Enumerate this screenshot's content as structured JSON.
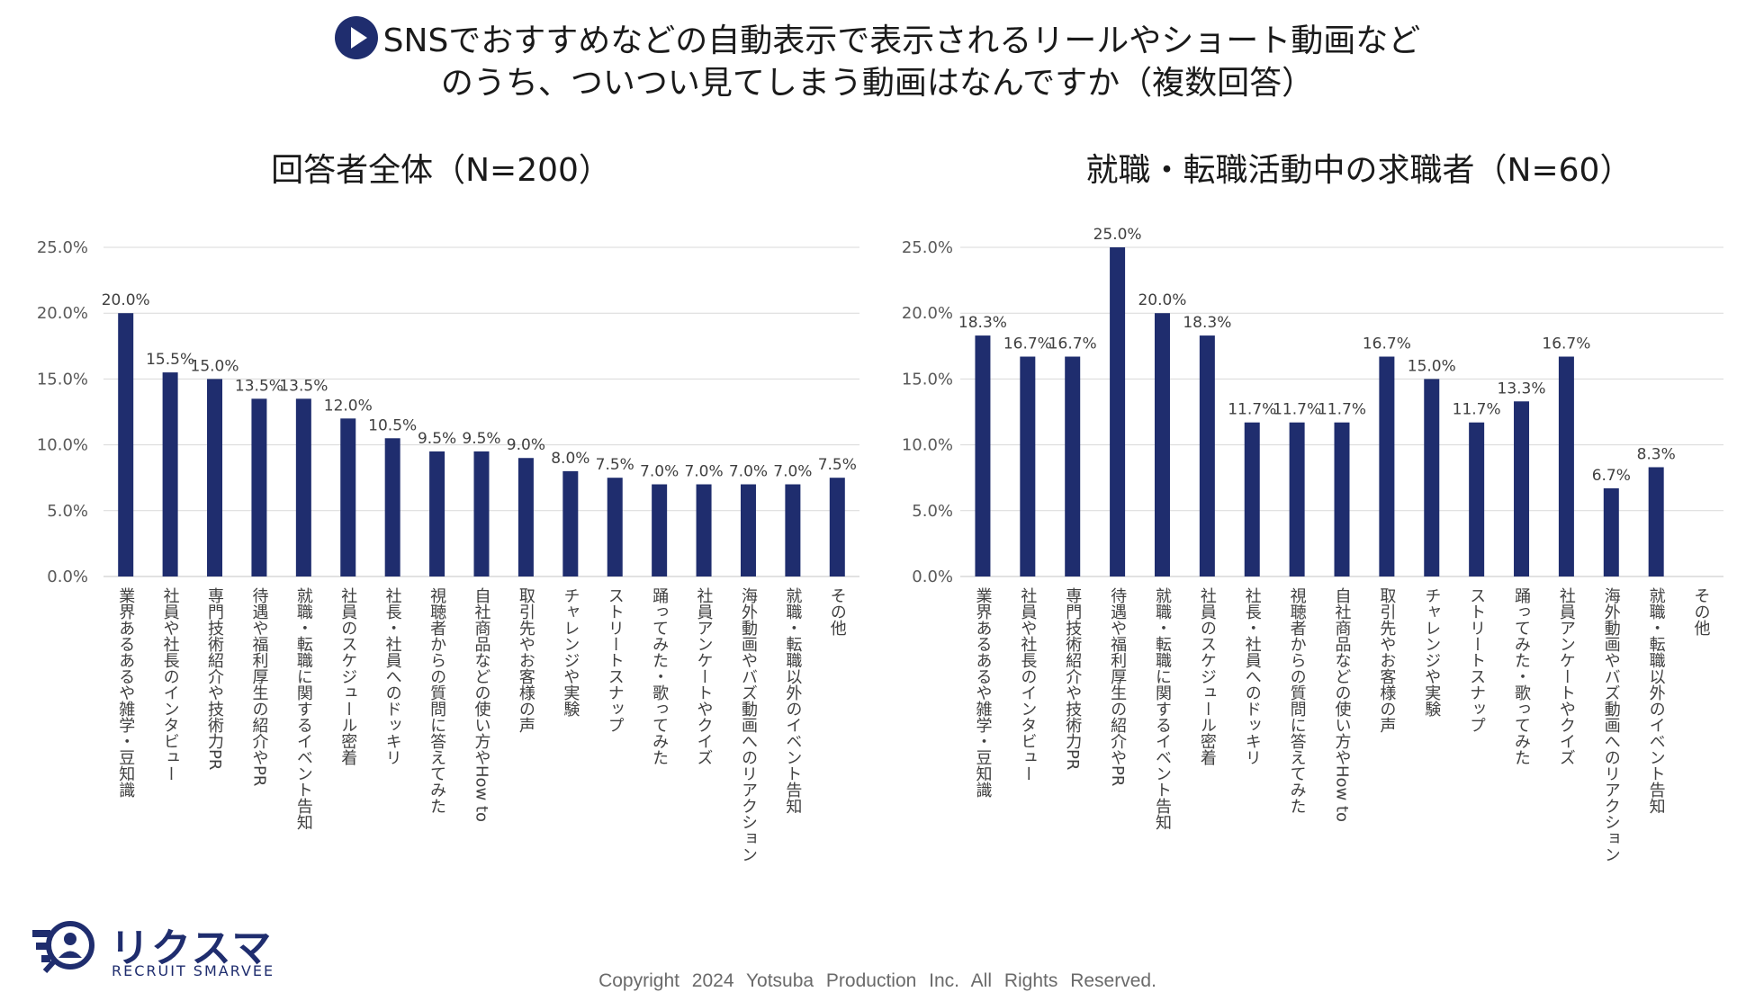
{
  "header": {
    "title_line1": "SNSでおすすめなどの自動表示で表示されるリールやショート動画など",
    "title_line2": "のうち、ついつい見てしまう動画はなんですか（複数回答）",
    "icon": "play-circle-icon"
  },
  "colors": {
    "bar": "#1f2d6e",
    "grid": "#d9d9d9",
    "axis_text": "#595959"
  },
  "chart_data": [
    {
      "type": "bar",
      "title": "回答者全体（N=200）",
      "xlabel": "",
      "ylabel": "",
      "ylim": [
        0,
        25
      ],
      "yticks": [
        "0.0%",
        "5.0%",
        "10.0%",
        "15.0%",
        "20.0%",
        "25.0%"
      ],
      "grid": true,
      "categories": [
        "業界あるあるや雑学・豆知識",
        "社員や社長のインタビュー",
        "専門技術紹介や技術力PR",
        "待遇や福利厚生の紹介やPR",
        "就職・転職に関するイベント告知",
        "社員のスケジュール密着",
        "社長・社員へのドッキリ",
        "視聴者からの質問に答えてみた",
        "自社商品などの使い方やHow to",
        "取引先やお客様の声",
        "チャレンジや実験",
        "ストリートスナップ",
        "踊ってみた・歌ってみた",
        "社員アンケートやクイズ",
        "海外動画やバズ動画へのリアクション",
        "就職・転職以外のイベント告知",
        "その他"
      ],
      "values": [
        20.0,
        15.5,
        15.0,
        13.5,
        13.5,
        12.0,
        10.5,
        9.5,
        9.5,
        9.0,
        8.0,
        7.5,
        7.0,
        7.0,
        7.0,
        7.0,
        7.5
      ],
      "labels": [
        "20.0%",
        "15.5%",
        "15.0%",
        "13.5%",
        "13.5%",
        "12.0%",
        "10.5%",
        "9.5%",
        "9.5%",
        "9.0%",
        "8.0%",
        "7.5%",
        "7.0%",
        "7.0%",
        "7.0%",
        "7.0%",
        "7.5%"
      ]
    },
    {
      "type": "bar",
      "title": "就職・転職活動中の求職者（N=60）",
      "xlabel": "",
      "ylabel": "",
      "ylim": [
        0,
        25
      ],
      "yticks": [
        "0.0%",
        "5.0%",
        "10.0%",
        "15.0%",
        "20.0%",
        "25.0%"
      ],
      "grid": true,
      "categories": [
        "業界あるあるや雑学・豆知識",
        "社員や社長のインタビュー",
        "専門技術紹介や技術力PR",
        "待遇や福利厚生の紹介やPR",
        "就職・転職に関するイベント告知",
        "社員のスケジュール密着",
        "社長・社員へのドッキリ",
        "視聴者からの質問に答えてみた",
        "自社商品などの使い方やHow to",
        "取引先やお客様の声",
        "チャレンジや実験",
        "ストリートスナップ",
        "踊ってみた・歌ってみた",
        "社員アンケートやクイズ",
        "海外動画やバズ動画へのリアクション",
        "就職・転職以外のイベント告知",
        "その他"
      ],
      "values": [
        18.3,
        16.7,
        16.7,
        25.0,
        20.0,
        18.3,
        11.7,
        11.7,
        11.7,
        16.7,
        15.0,
        11.7,
        13.3,
        16.7,
        6.7,
        8.3,
        0
      ],
      "labels": [
        "18.3%",
        "16.7%",
        "16.7%",
        "25.0%",
        "20.0%",
        "18.3%",
        "11.7%",
        "11.7%",
        "11.7%",
        "16.7%",
        "15.0%",
        "11.7%",
        "13.3%",
        "16.7%",
        "6.7%",
        "8.3%",
        ""
      ]
    }
  ],
  "logo": {
    "text": "リクスマ",
    "subtext": "RECRUIT SMARVEE",
    "icon": "magnifier-person-icon"
  },
  "footer": {
    "copyright": "Copyright 2024 Yotsuba Production Inc. All Rights Reserved."
  }
}
